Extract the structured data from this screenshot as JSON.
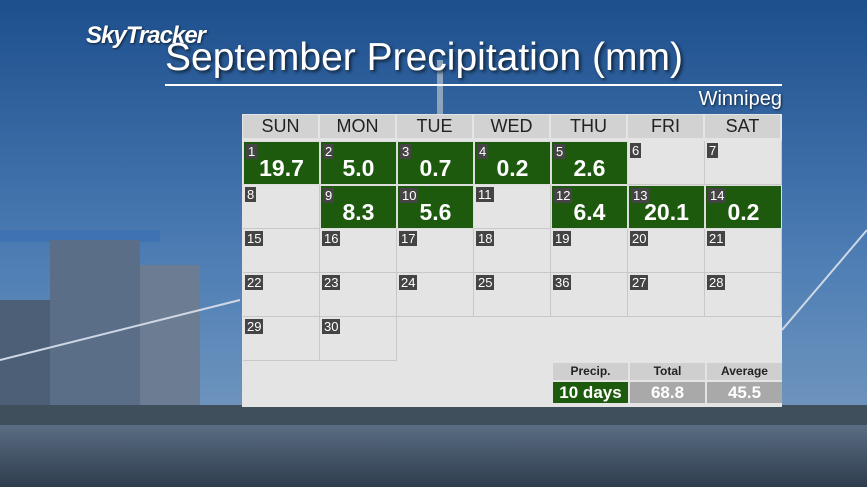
{
  "brand": "SkyTracker",
  "title": "September Precipitation (mm)",
  "location": "Winnipeg",
  "calendar": {
    "days": [
      "SUN",
      "MON",
      "TUE",
      "WED",
      "THU",
      "FRI",
      "SAT"
    ],
    "weeks": [
      [
        {
          "day": 1,
          "value": "19.7"
        },
        {
          "day": 2,
          "value": "5.0"
        },
        {
          "day": 3,
          "value": "0.7"
        },
        {
          "day": 4,
          "value": "0.2"
        },
        {
          "day": 5,
          "value": "2.6"
        },
        {
          "day": 6
        },
        {
          "day": 7
        }
      ],
      [
        {
          "day": 8
        },
        {
          "day": 9,
          "value": "8.3"
        },
        {
          "day": 10,
          "value": "5.6"
        },
        {
          "day": 11
        },
        {
          "day": 12,
          "value": "6.4"
        },
        {
          "day": 13,
          "value": "20.1"
        },
        {
          "day": 14,
          "value": "0.2"
        }
      ],
      [
        {
          "day": 15
        },
        {
          "day": 16
        },
        {
          "day": 17
        },
        {
          "day": 18
        },
        {
          "day": 19
        },
        {
          "day": 20
        },
        {
          "day": 21
        }
      ],
      [
        {
          "day": 22
        },
        {
          "day": 23
        },
        {
          "day": 24
        },
        {
          "day": 25
        },
        {
          "day": 36
        },
        {
          "day": 27
        },
        {
          "day": 28
        }
      ],
      [
        {
          "day": 29
        },
        {
          "day": 30
        },
        null,
        null,
        null,
        null,
        null
      ]
    ],
    "summary": {
      "headers": [
        "Precip.",
        "Total",
        "Average"
      ],
      "values": [
        "10 days",
        "68.8",
        "45.5"
      ]
    }
  }
}
